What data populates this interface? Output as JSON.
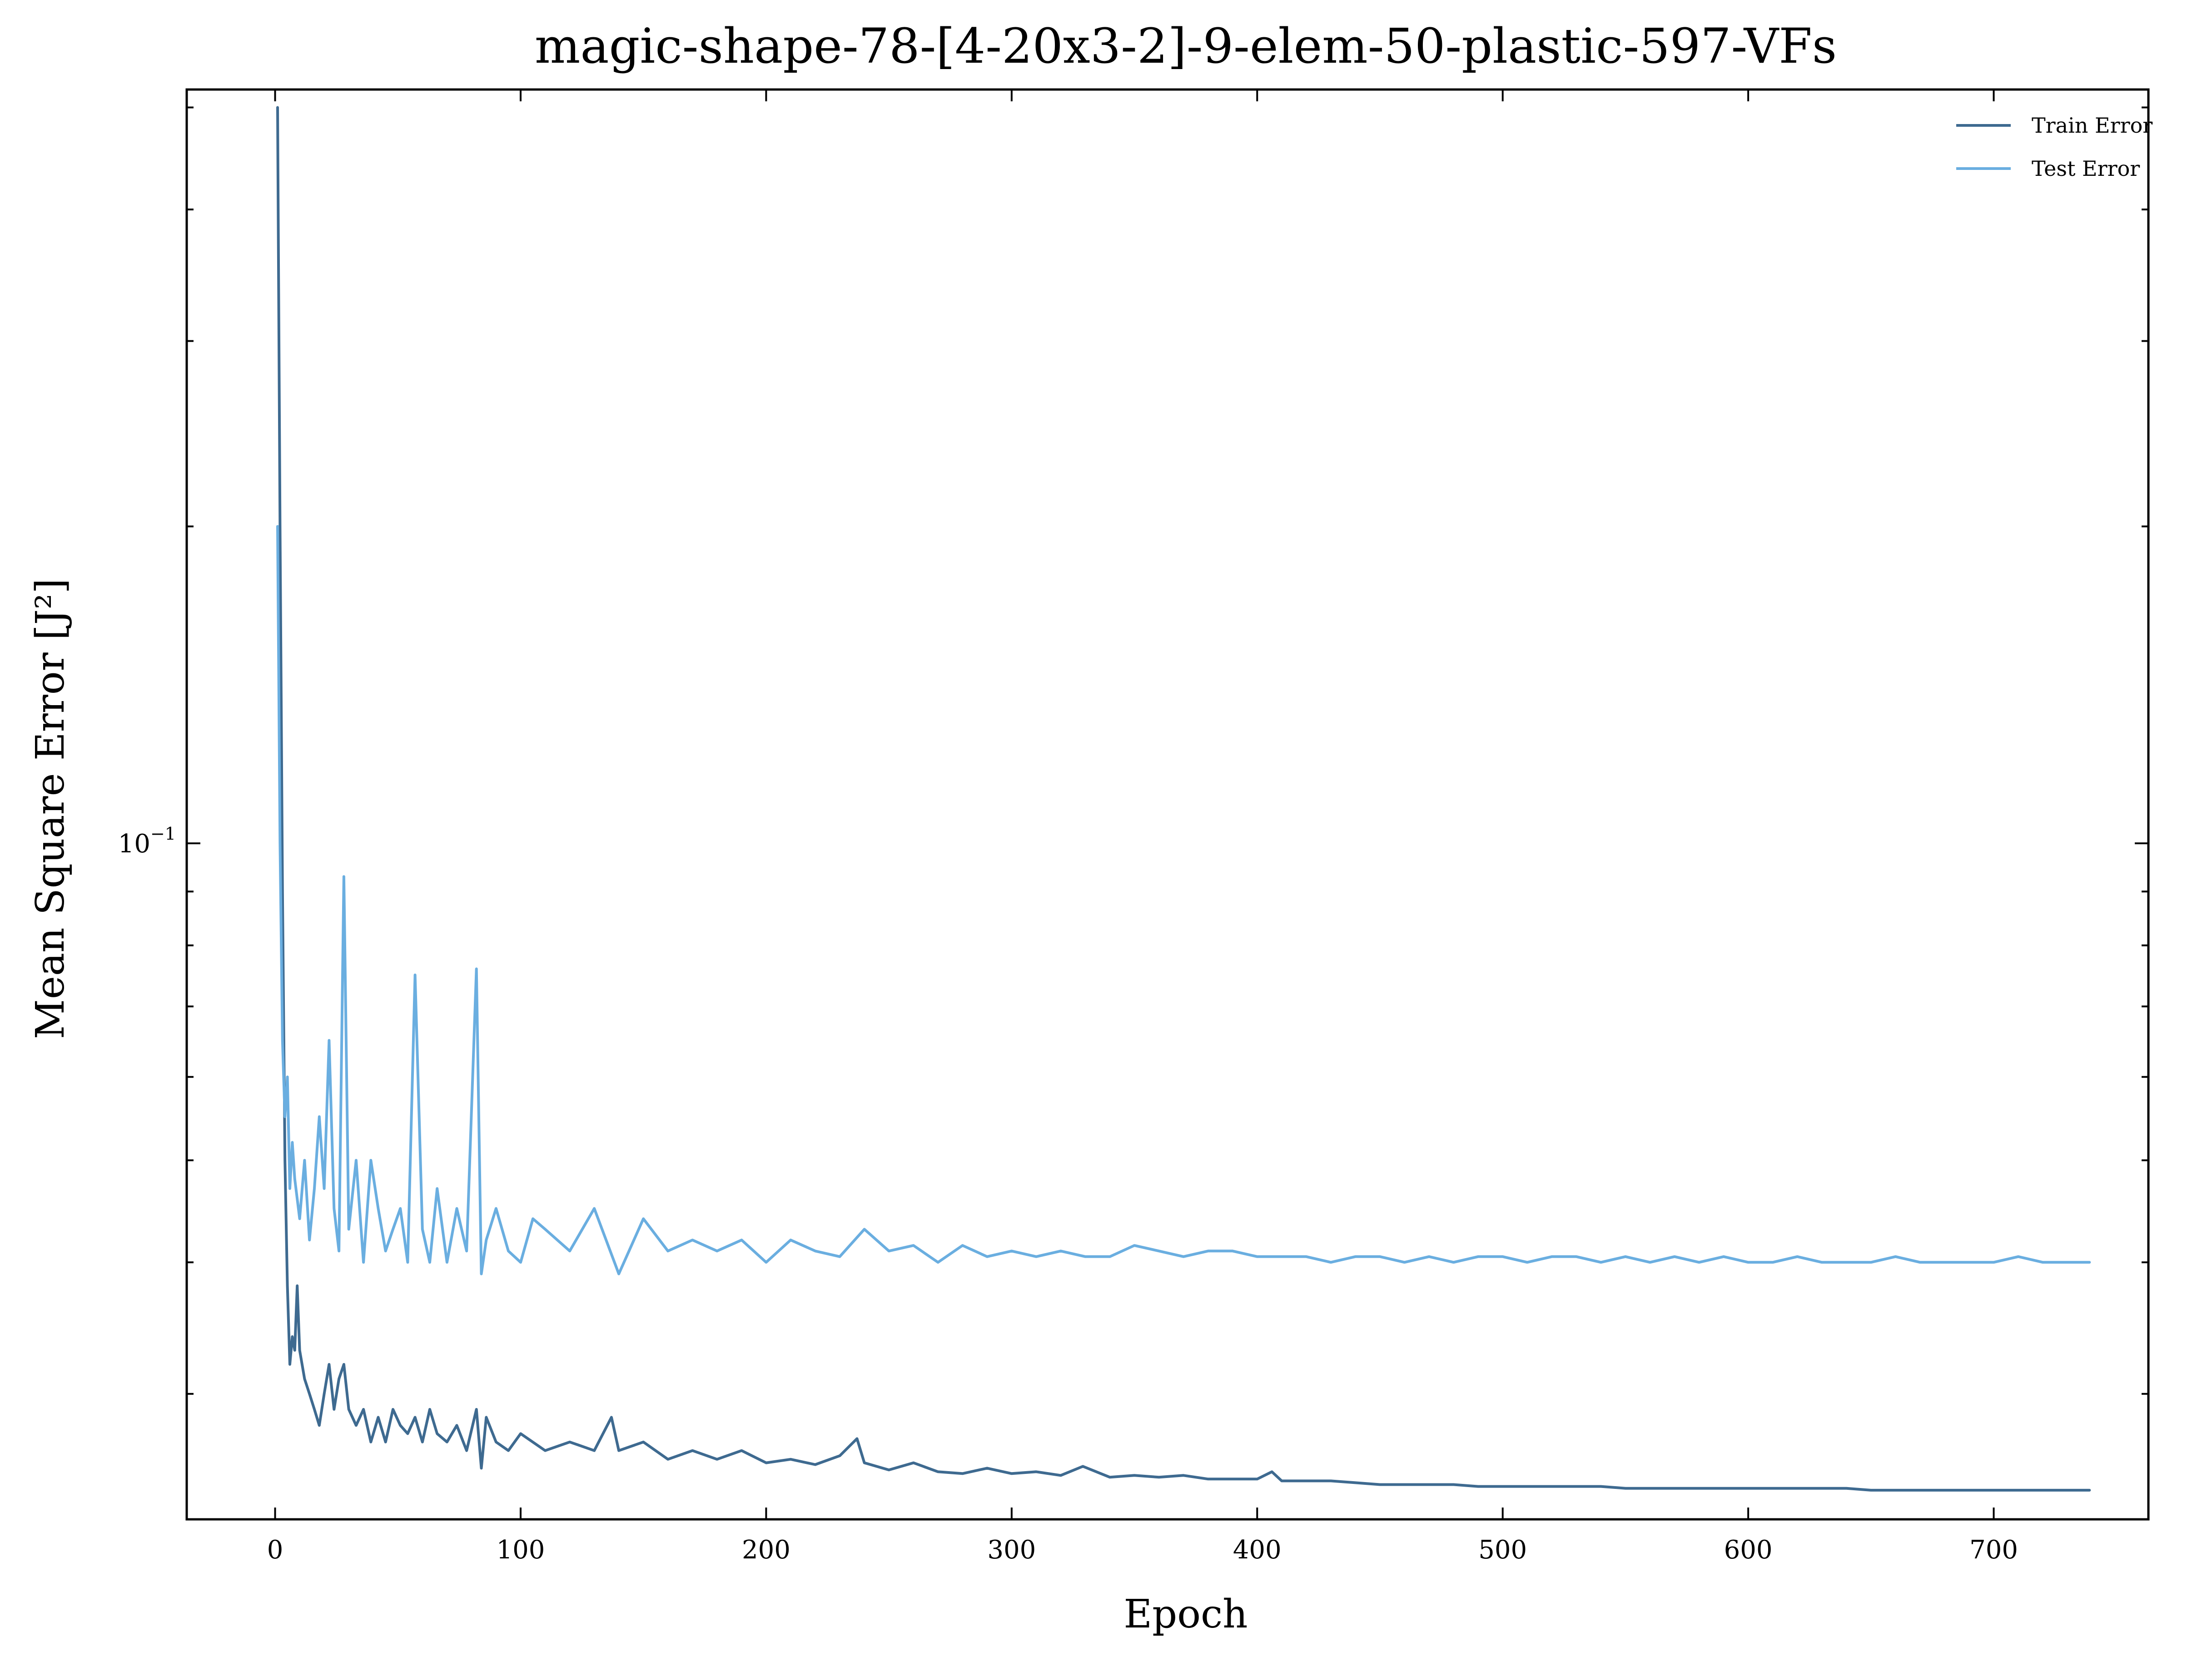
{
  "chart_data": {
    "type": "line",
    "title": "magic-shape-78-[4-20x3-2]-9-elem-50-plastic-597-VFs",
    "xlabel": "Epoch",
    "ylabel": "Mean Square Error [J²]",
    "yscale": "log",
    "xlim": [
      -36,
      763
    ],
    "ylim": [
      0.0228,
      0.52
    ],
    "xticks": [
      0,
      100,
      200,
      300,
      400,
      500,
      600,
      700
    ],
    "xtick_labels": [
      "0",
      "100",
      "200",
      "300",
      "400",
      "500",
      "600",
      "700"
    ],
    "ytick_major": [
      0.1
    ],
    "ytick_major_label_base": "10",
    "ytick_major_label_exp": "−1",
    "grid": false,
    "legend_position": "top-right",
    "colors": {
      "train": "#3e6a90",
      "test": "#6aaee0"
    },
    "series": [
      {
        "name": "Train Error",
        "color": "#3e6a90",
        "x": [
          1,
          2,
          3,
          4,
          5,
          6,
          7,
          8,
          9,
          10,
          12,
          14,
          16,
          18,
          20,
          22,
          24,
          26,
          28,
          30,
          33,
          36,
          39,
          42,
          45,
          48,
          51,
          54,
          57,
          60,
          63,
          66,
          70,
          74,
          78,
          82,
          84,
          86,
          90,
          95,
          100,
          110,
          120,
          130,
          137,
          140,
          150,
          160,
          170,
          180,
          190,
          200,
          210,
          220,
          230,
          237,
          240,
          250,
          260,
          270,
          280,
          290,
          300,
          310,
          320,
          329,
          340,
          350,
          360,
          370,
          380,
          390,
          400,
          406,
          410,
          420,
          430,
          440,
          450,
          460,
          470,
          480,
          490,
          500,
          510,
          520,
          530,
          540,
          550,
          560,
          570,
          580,
          590,
          600,
          610,
          620,
          630,
          640,
          650,
          660,
          670,
          680,
          690,
          700,
          710,
          720,
          730,
          739
        ],
        "values": [
          0.5,
          0.2,
          0.09,
          0.05,
          0.038,
          0.032,
          0.034,
          0.033,
          0.038,
          0.033,
          0.031,
          0.03,
          0.029,
          0.028,
          0.03,
          0.032,
          0.029,
          0.031,
          0.032,
          0.029,
          0.028,
          0.029,
          0.027,
          0.0285,
          0.027,
          0.029,
          0.028,
          0.0275,
          0.0285,
          0.027,
          0.029,
          0.0275,
          0.027,
          0.028,
          0.0265,
          0.029,
          0.0255,
          0.0285,
          0.027,
          0.0265,
          0.0275,
          0.0265,
          0.027,
          0.0265,
          0.0285,
          0.0265,
          0.027,
          0.026,
          0.0265,
          0.026,
          0.0265,
          0.0258,
          0.026,
          0.0257,
          0.0262,
          0.0272,
          0.0258,
          0.0254,
          0.0258,
          0.0253,
          0.0252,
          0.0255,
          0.0252,
          0.0253,
          0.0251,
          0.0256,
          0.025,
          0.0251,
          0.025,
          0.0251,
          0.0249,
          0.0249,
          0.0249,
          0.0253,
          0.0248,
          0.0248,
          0.0248,
          0.0247,
          0.0246,
          0.0246,
          0.0246,
          0.0246,
          0.0245,
          0.0245,
          0.0245,
          0.0245,
          0.0245,
          0.0245,
          0.0244,
          0.0244,
          0.0244,
          0.0244,
          0.0244,
          0.0244,
          0.0244,
          0.0244,
          0.0244,
          0.0244,
          0.0243,
          0.0243,
          0.0243,
          0.0243,
          0.0243,
          0.0243,
          0.0243,
          0.0243,
          0.0243,
          0.0243
        ]
      },
      {
        "name": "Test Error",
        "color": "#6aaee0",
        "x": [
          1,
          2,
          3,
          4,
          5,
          6,
          7,
          8,
          10,
          12,
          14,
          16,
          18,
          20,
          22,
          24,
          26,
          28,
          30,
          33,
          36,
          39,
          42,
          45,
          48,
          51,
          54,
          57,
          60,
          63,
          66,
          70,
          74,
          78,
          82,
          84,
          86,
          90,
          95,
          100,
          105,
          110,
          120,
          130,
          140,
          150,
          160,
          170,
          180,
          190,
          200,
          210,
          220,
          230,
          240,
          250,
          260,
          270,
          280,
          290,
          300,
          310,
          320,
          330,
          340,
          350,
          360,
          370,
          380,
          390,
          400,
          410,
          420,
          430,
          440,
          450,
          460,
          470,
          480,
          490,
          500,
          510,
          520,
          530,
          540,
          550,
          560,
          570,
          580,
          590,
          600,
          610,
          620,
          630,
          640,
          650,
          660,
          670,
          680,
          690,
          700,
          710,
          720,
          730,
          739
        ],
        "values": [
          0.2,
          0.1,
          0.065,
          0.055,
          0.06,
          0.047,
          0.052,
          0.048,
          0.044,
          0.05,
          0.042,
          0.047,
          0.055,
          0.047,
          0.065,
          0.045,
          0.041,
          0.093,
          0.043,
          0.05,
          0.04,
          0.05,
          0.045,
          0.041,
          0.043,
          0.045,
          0.04,
          0.075,
          0.043,
          0.04,
          0.047,
          0.04,
          0.045,
          0.041,
          0.076,
          0.039,
          0.042,
          0.045,
          0.041,
          0.04,
          0.044,
          0.043,
          0.041,
          0.045,
          0.039,
          0.044,
          0.041,
          0.042,
          0.041,
          0.042,
          0.04,
          0.042,
          0.041,
          0.0405,
          0.043,
          0.041,
          0.0415,
          0.04,
          0.0415,
          0.0405,
          0.041,
          0.0405,
          0.041,
          0.0405,
          0.0405,
          0.0415,
          0.041,
          0.0405,
          0.041,
          0.041,
          0.0405,
          0.0405,
          0.0405,
          0.04,
          0.0405,
          0.0405,
          0.04,
          0.0405,
          0.04,
          0.0405,
          0.0405,
          0.04,
          0.0405,
          0.0405,
          0.04,
          0.0405,
          0.04,
          0.0405,
          0.04,
          0.0405,
          0.04,
          0.04,
          0.0405,
          0.04,
          0.04,
          0.04,
          0.0405,
          0.04,
          0.04,
          0.04,
          0.04,
          0.0405,
          0.04,
          0.04,
          0.04
        ]
      }
    ]
  }
}
